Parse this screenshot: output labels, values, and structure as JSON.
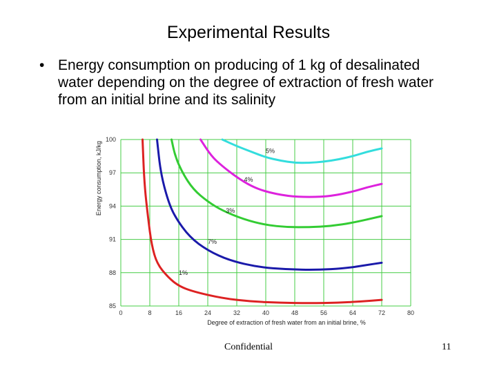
{
  "slide": {
    "title": "Experimental Results",
    "bullet_symbol": "•",
    "bullet": "Energy consumption on producing of 1 kg of desalinated water depending on the degree of extraction of fresh water from an initial brine and its salinity",
    "footer": "Confidential",
    "page_number": "11"
  },
  "chart_data": {
    "type": "line",
    "title": "",
    "xlabel": "Degree of extraction of fresh water from an initial brine, %",
    "ylabel": "Energy consumption, kJ/kg",
    "xlim": [
      0,
      80
    ],
    "ylim": [
      85,
      100
    ],
    "x_ticks": [
      "0",
      "8",
      "16",
      "24",
      "32",
      "40",
      "48",
      "56",
      "64",
      "72",
      "80"
    ],
    "y_ticks": [
      "100",
      "97",
      "94",
      "91",
      "88",
      "85"
    ],
    "grid": true,
    "series": [
      {
        "name": "1%",
        "color": "#dd2222",
        "label_at": [
          16,
          87.8
        ],
        "points": [
          [
            6,
            100
          ],
          [
            6.5,
            96
          ],
          [
            7.5,
            93
          ],
          [
            8.5,
            90.5
          ],
          [
            10,
            88.8
          ],
          [
            13,
            87.6
          ],
          [
            16,
            86.8
          ],
          [
            20,
            86.3
          ],
          [
            28,
            85.7
          ],
          [
            36,
            85.4
          ],
          [
            44,
            85.3
          ],
          [
            52,
            85.25
          ],
          [
            60,
            85.3
          ],
          [
            66,
            85.4
          ],
          [
            72,
            85.55
          ]
        ]
      },
      {
        "name": "7%",
        "color": "#1a1aaa",
        "label_at": [
          24,
          90.6
        ],
        "points": [
          [
            10,
            100
          ],
          [
            11,
            97
          ],
          [
            13,
            94.5
          ],
          [
            15,
            93
          ],
          [
            19,
            91.2
          ],
          [
            24,
            90
          ],
          [
            30,
            89.1
          ],
          [
            38,
            88.5
          ],
          [
            46,
            88.3
          ],
          [
            54,
            88.25
          ],
          [
            62,
            88.4
          ],
          [
            68,
            88.7
          ],
          [
            72,
            88.9
          ]
        ]
      },
      {
        "name": "3%",
        "color": "#33cc33",
        "label_at": [
          29,
          93.4
        ],
        "points": [
          [
            14,
            100
          ],
          [
            15,
            98.5
          ],
          [
            17,
            97
          ],
          [
            20,
            95.5
          ],
          [
            24,
            94.4
          ],
          [
            28,
            93.6
          ],
          [
            34,
            92.8
          ],
          [
            40,
            92.3
          ],
          [
            46,
            92.1
          ],
          [
            52,
            92.1
          ],
          [
            58,
            92.2
          ],
          [
            64,
            92.5
          ],
          [
            72,
            93.1
          ]
        ]
      },
      {
        "name": "4%",
        "color": "#dd22dd",
        "label_at": [
          34,
          96.2
        ],
        "points": [
          [
            22,
            100
          ],
          [
            25,
            98.5
          ],
          [
            28,
            97.6
          ],
          [
            32,
            96.6
          ],
          [
            36,
            95.8
          ],
          [
            40,
            95.3
          ],
          [
            46,
            94.9
          ],
          [
            52,
            94.8
          ],
          [
            58,
            94.9
          ],
          [
            64,
            95.3
          ],
          [
            68,
            95.7
          ],
          [
            72,
            96
          ]
        ]
      },
      {
        "name": "5%",
        "color": "#33dddd",
        "label_at": [
          40,
          98.8
        ],
        "points": [
          [
            28,
            100
          ],
          [
            32,
            99.4
          ],
          [
            36,
            98.9
          ],
          [
            40,
            98.4
          ],
          [
            44,
            98.1
          ],
          [
            48,
            97.9
          ],
          [
            52,
            97.9
          ],
          [
            56,
            98
          ],
          [
            60,
            98.2
          ],
          [
            64,
            98.5
          ],
          [
            68,
            98.9
          ],
          [
            72,
            99.2
          ]
        ]
      }
    ]
  }
}
